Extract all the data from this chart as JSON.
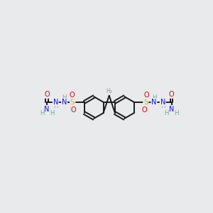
{
  "bg_color": "#e8eaec",
  "bond_color": "#1a1a1a",
  "bond_width": 1.4,
  "atom_colors": {
    "C": "#1a1a1a",
    "H": "#6fa8a8",
    "N": "#1010dd",
    "O": "#dd0000",
    "S": "#c8b800"
  },
  "fig_width": 3.0,
  "fig_height": 3.0,
  "dpi": 100
}
